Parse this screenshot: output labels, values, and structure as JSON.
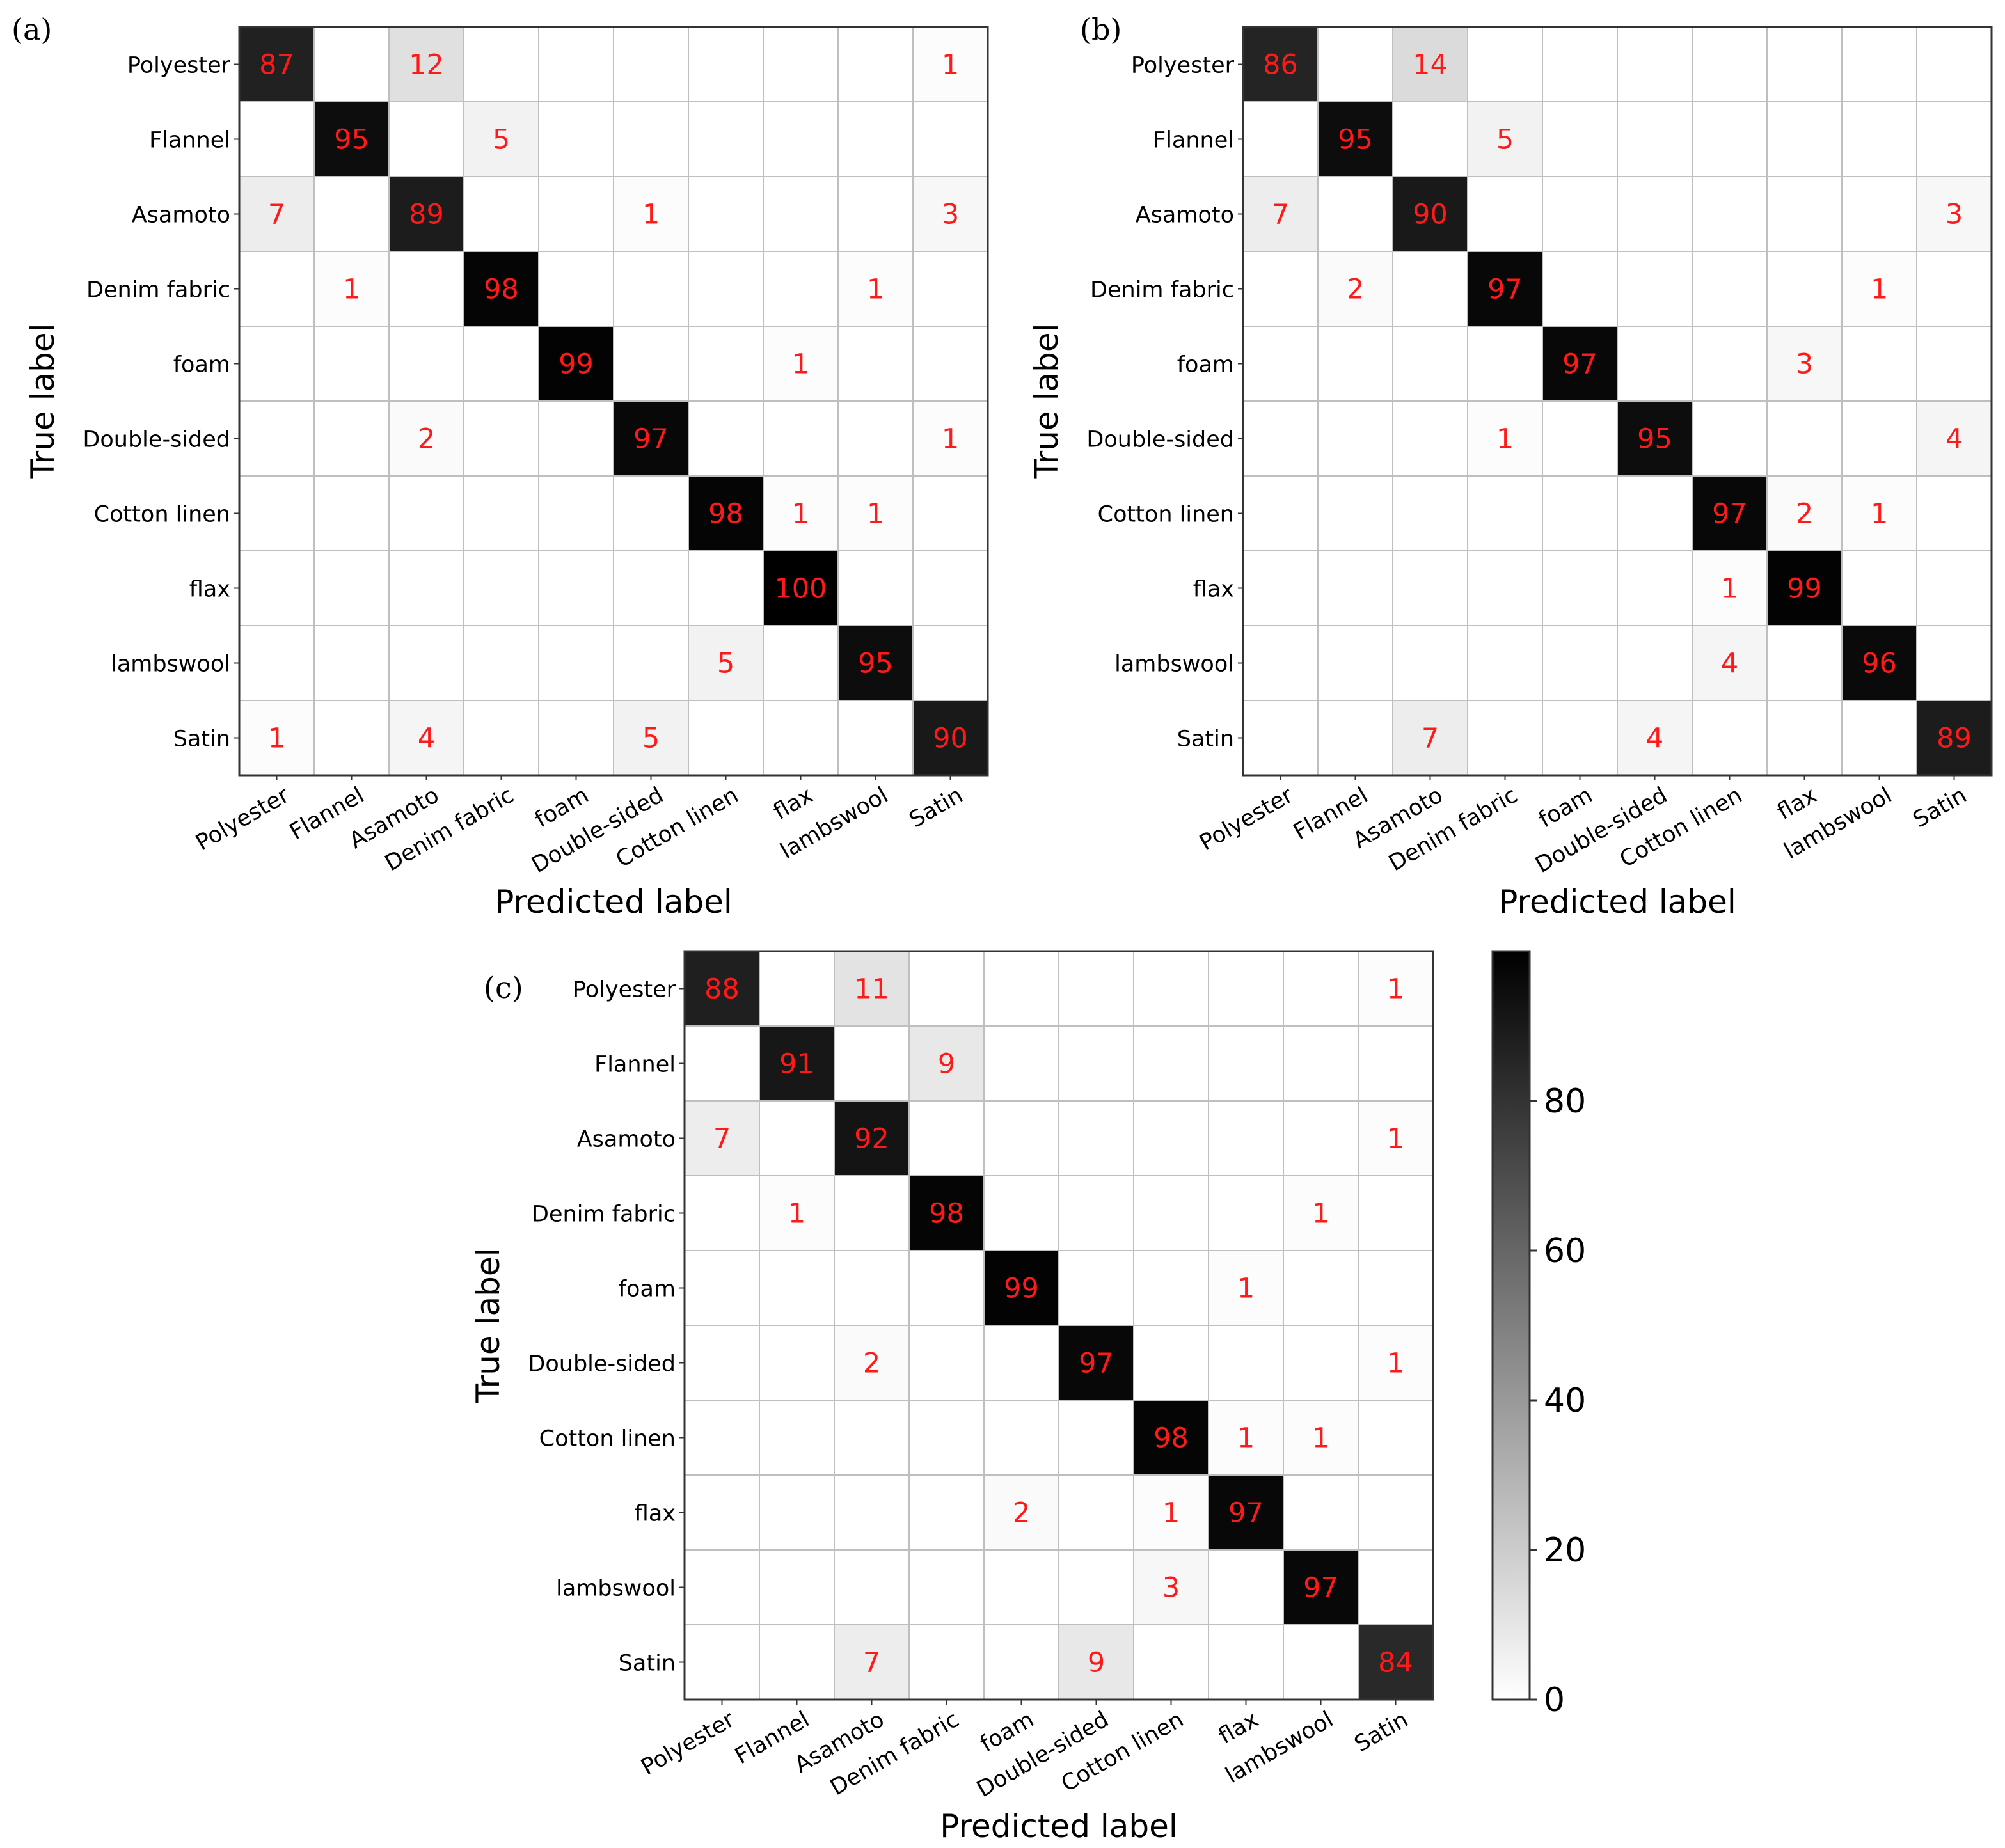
{
  "chart_data": [
    {
      "type": "heatmap",
      "panel_label": "(a)",
      "xlabel": "Predicted label",
      "ylabel": "True label",
      "categories": [
        "Polyester",
        "Flannel",
        "Asamoto",
        "Denim fabric",
        "foam",
        "Double-sided",
        "Cotton linen",
        "flax",
        "lambswool",
        "Satin"
      ],
      "values": [
        [
          87,
          0,
          12,
          0,
          0,
          0,
          0,
          0,
          0,
          1
        ],
        [
          0,
          95,
          0,
          5,
          0,
          0,
          0,
          0,
          0,
          0
        ],
        [
          7,
          0,
          89,
          0,
          0,
          1,
          0,
          0,
          0,
          3
        ],
        [
          0,
          1,
          0,
          98,
          0,
          0,
          0,
          0,
          1,
          0
        ],
        [
          0,
          0,
          0,
          0,
          99,
          0,
          0,
          1,
          0,
          0
        ],
        [
          0,
          0,
          2,
          0,
          0,
          97,
          0,
          0,
          0,
          1
        ],
        [
          0,
          0,
          0,
          0,
          0,
          0,
          98,
          1,
          1,
          0
        ],
        [
          0,
          0,
          0,
          0,
          0,
          0,
          0,
          100,
          0,
          0
        ],
        [
          0,
          0,
          0,
          0,
          0,
          0,
          5,
          0,
          95,
          0
        ],
        [
          1,
          0,
          4,
          0,
          0,
          5,
          0,
          0,
          0,
          90
        ]
      ]
    },
    {
      "type": "heatmap",
      "panel_label": "(b)",
      "xlabel": "Predicted label",
      "ylabel": "True label",
      "categories": [
        "Polyester",
        "Flannel",
        "Asamoto",
        "Denim fabric",
        "foam",
        "Double-sided",
        "Cotton linen",
        "flax",
        "lambswool",
        "Satin"
      ],
      "values": [
        [
          86,
          0,
          14,
          0,
          0,
          0,
          0,
          0,
          0,
          0
        ],
        [
          0,
          95,
          0,
          5,
          0,
          0,
          0,
          0,
          0,
          0
        ],
        [
          7,
          0,
          90,
          0,
          0,
          0,
          0,
          0,
          0,
          3
        ],
        [
          0,
          2,
          0,
          97,
          0,
          0,
          0,
          0,
          1,
          0
        ],
        [
          0,
          0,
          0,
          0,
          97,
          0,
          0,
          3,
          0,
          0
        ],
        [
          0,
          0,
          0,
          1,
          0,
          95,
          0,
          0,
          0,
          4
        ],
        [
          0,
          0,
          0,
          0,
          0,
          0,
          97,
          2,
          1,
          0
        ],
        [
          0,
          0,
          0,
          0,
          0,
          0,
          1,
          99,
          0,
          0
        ],
        [
          0,
          0,
          0,
          0,
          0,
          0,
          4,
          0,
          96,
          0
        ],
        [
          0,
          0,
          7,
          0,
          0,
          4,
          0,
          0,
          0,
          89
        ]
      ]
    },
    {
      "type": "heatmap",
      "panel_label": "(c)",
      "xlabel": "Predicted label",
      "ylabel": "True label",
      "categories": [
        "Polyester",
        "Flannel",
        "Asamoto",
        "Denim fabric",
        "foam",
        "Double-sided",
        "Cotton linen",
        "flax",
        "lambswool",
        "Satin"
      ],
      "values": [
        [
          88,
          0,
          11,
          0,
          0,
          0,
          0,
          0,
          0,
          1
        ],
        [
          0,
          91,
          0,
          9,
          0,
          0,
          0,
          0,
          0,
          0
        ],
        [
          7,
          0,
          92,
          0,
          0,
          0,
          0,
          0,
          0,
          1
        ],
        [
          0,
          1,
          0,
          98,
          0,
          0,
          0,
          0,
          1,
          0
        ],
        [
          0,
          0,
          0,
          0,
          99,
          0,
          0,
          1,
          0,
          0
        ],
        [
          0,
          0,
          2,
          0,
          0,
          97,
          0,
          0,
          0,
          1
        ],
        [
          0,
          0,
          0,
          0,
          0,
          0,
          98,
          1,
          1,
          0
        ],
        [
          0,
          0,
          0,
          0,
          2,
          0,
          1,
          97,
          0,
          0
        ],
        [
          0,
          0,
          0,
          0,
          0,
          0,
          3,
          0,
          97,
          0
        ],
        [
          0,
          0,
          7,
          0,
          0,
          9,
          0,
          0,
          0,
          84
        ]
      ]
    }
  ],
  "colorbar": {
    "range": [
      0,
      100
    ],
    "ticks": [
      0,
      20,
      40,
      60,
      80
    ],
    "tick_labels": [
      "0",
      "20",
      "40",
      "60",
      "80"
    ]
  },
  "colors": {
    "value_text": "#ff1a1a",
    "grid": "#bfbfbf",
    "frame": "#333333",
    "text": "#000000"
  }
}
